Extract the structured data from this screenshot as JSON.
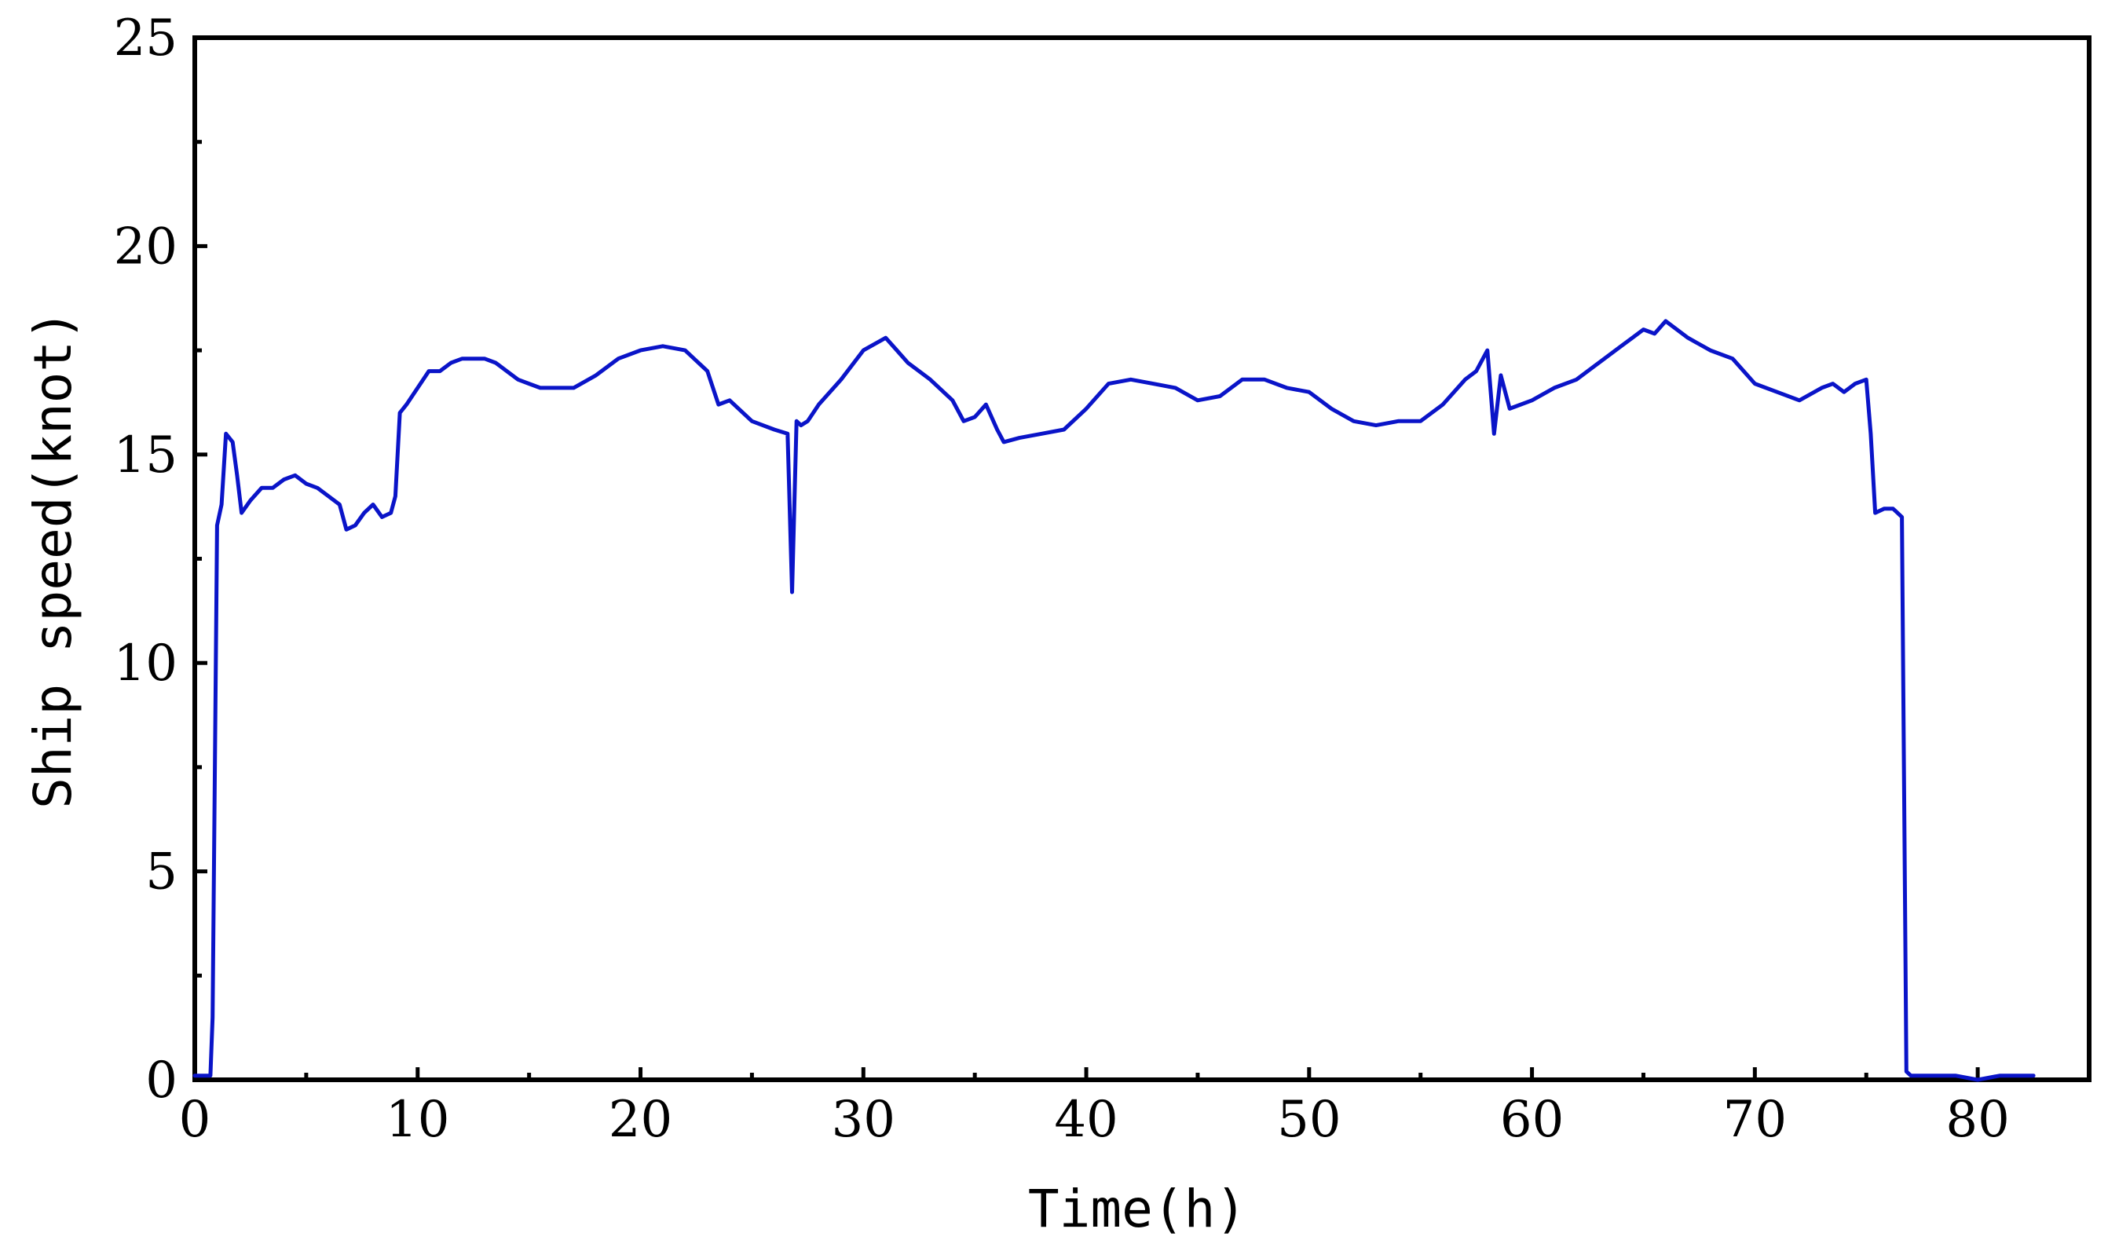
{
  "chart_data": {
    "type": "line",
    "xlabel": "Time(h)",
    "ylabel": "Ship speed(knot)",
    "xlim": [
      0,
      85
    ],
    "ylim": [
      0,
      25
    ],
    "x_ticks": [
      0,
      10,
      20,
      30,
      40,
      50,
      60,
      70,
      80
    ],
    "y_ticks": [
      0,
      5,
      10,
      15,
      20,
      25
    ],
    "grid": false,
    "line_color": "#0a14c8",
    "series": [
      {
        "x": [
          0,
          0.4,
          0.7,
          0.8,
          1.0,
          1.2,
          1.4,
          1.7,
          1.9,
          2.1,
          2.5,
          3.0,
          3.5,
          4.0,
          4.5,
          5.0,
          5.5,
          6.0,
          6.5,
          6.8,
          7.2,
          7.6,
          8.0,
          8.4,
          8.8,
          9.0,
          9.2,
          9.5,
          10.0,
          10.5,
          11.0,
          11.5,
          12.0,
          12.5,
          13.0,
          13.5,
          14.0,
          14.5,
          15.0,
          15.5,
          16.0,
          17.0,
          18.0,
          19.0,
          20.0,
          21.0,
          22.0,
          23.0,
          23.5,
          24.0,
          25.0,
          26.0,
          26.6,
          26.8,
          27.0,
          27.2,
          27.5,
          28.0,
          29.0,
          30.0,
          31.0,
          31.5,
          32.0,
          33.0,
          34.0,
          34.5,
          35.0,
          35.5,
          36.0,
          36.3,
          37.0,
          38.0,
          39.0,
          40.0,
          41.0,
          42.0,
          43.0,
          44.0,
          45.0,
          46.0,
          47.0,
          48.0,
          49.0,
          50.0,
          51.0,
          52.0,
          53.0,
          54.0,
          55.0,
          56.0,
          57.0,
          57.5,
          58.0,
          58.3,
          58.6,
          59.0,
          60.0,
          61.0,
          62.0,
          63.0,
          64.0,
          64.5,
          65.0,
          65.5,
          66.0,
          67.0,
          68.0,
          69.0,
          70.0,
          71.0,
          72.0,
          73.0,
          73.5,
          74.0,
          74.5,
          75.0,
          75.2,
          75.4,
          75.8,
          76.2,
          76.4,
          76.6,
          76.8,
          77.0,
          78.0,
          79.0,
          80.0,
          81.0,
          82.0,
          82.5
        ],
        "y": [
          0.1,
          0.1,
          0.1,
          1.5,
          13.3,
          13.8,
          15.5,
          15.3,
          14.5,
          13.6,
          13.9,
          14.2,
          14.2,
          14.4,
          14.5,
          14.3,
          14.2,
          14.0,
          13.8,
          13.2,
          13.3,
          13.6,
          13.8,
          13.5,
          13.6,
          14.0,
          16.0,
          16.2,
          16.6,
          17.0,
          17.0,
          17.2,
          17.3,
          17.3,
          17.3,
          17.2,
          17.0,
          16.8,
          16.7,
          16.6,
          16.6,
          16.6,
          16.9,
          17.3,
          17.5,
          17.6,
          17.5,
          17.0,
          16.2,
          16.3,
          15.8,
          15.6,
          15.5,
          11.7,
          15.8,
          15.7,
          15.8,
          16.2,
          16.8,
          17.5,
          17.8,
          17.5,
          17.2,
          16.8,
          16.3,
          15.8,
          15.9,
          16.2,
          15.6,
          15.3,
          15.4,
          15.5,
          15.6,
          16.1,
          16.7,
          16.8,
          16.7,
          16.6,
          16.3,
          16.4,
          16.8,
          16.8,
          16.6,
          16.5,
          16.1,
          15.8,
          15.7,
          15.8,
          15.8,
          16.2,
          16.8,
          17.0,
          17.5,
          15.5,
          16.9,
          16.1,
          16.3,
          16.6,
          16.8,
          17.2,
          17.6,
          17.8,
          18.0,
          17.9,
          18.2,
          17.8,
          17.5,
          17.3,
          16.7,
          16.5,
          16.3,
          16.6,
          16.7,
          16.5,
          16.7,
          16.8,
          15.5,
          13.6,
          13.7,
          13.7,
          13.6,
          13.5,
          0.2,
          0.1,
          0.1,
          0.1,
          0.0,
          0.1,
          0.1,
          0.1
        ]
      }
    ]
  }
}
